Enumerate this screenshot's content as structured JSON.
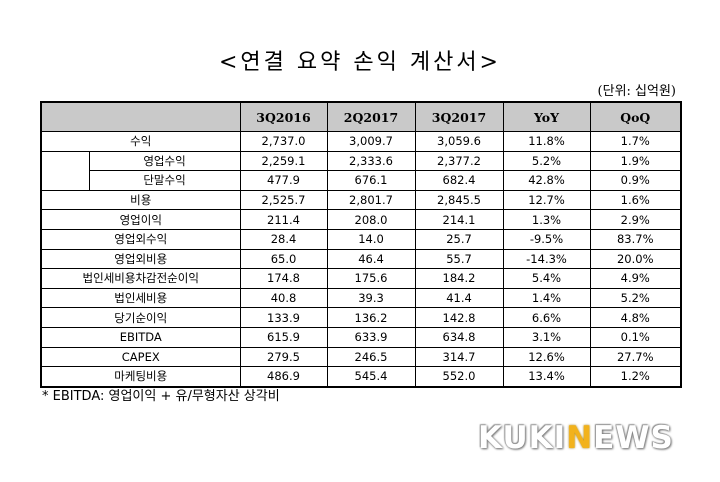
{
  "title": "<연결 요약 손익 계산서>",
  "unit": "(단위: 십억원)",
  "columns": [
    "3Q2016",
    "2Q2017",
    "3Q2017",
    "YoY",
    "QoQ"
  ],
  "rows": [
    {
      "label": "수익",
      "values": [
        "2,737.0",
        "3,009.7",
        "3,059.6",
        "11.8%",
        "1.7%"
      ]
    },
    {
      "label": "영업수익",
      "values": [
        "2,259.1",
        "2,333.6",
        "2,377.2",
        "5.2%",
        "1.9%"
      ]
    },
    {
      "label": "단말수익",
      "values": [
        "477.9",
        "676.1",
        "682.4",
        "42.8%",
        "0.9%"
      ]
    },
    {
      "label": "비용",
      "values": [
        "2,525.7",
        "2,801.7",
        "2,845.5",
        "12.7%",
        "1.6%"
      ]
    },
    {
      "label": "영업이익",
      "values": [
        "211.4",
        "208.0",
        "214.1",
        "1.3%",
        "2.9%"
      ]
    },
    {
      "label": "영업외수익",
      "values": [
        "28.4",
        "14.0",
        "25.7",
        "-9.5%",
        "83.7%"
      ]
    },
    {
      "label": "영업외비용",
      "values": [
        "65.0",
        "46.4",
        "55.7",
        "-14.3%",
        "20.0%"
      ]
    },
    {
      "label": "법인세비용차감전순이익",
      "values": [
        "174.8",
        "175.6",
        "184.2",
        "5.4%",
        "4.9%"
      ]
    },
    {
      "label": "법인세비용",
      "values": [
        "40.8",
        "39.3",
        "41.4",
        "1.4%",
        "5.2%"
      ]
    },
    {
      "label": "당기순이익",
      "values": [
        "133.9",
        "136.2",
        "142.8",
        "6.6%",
        "4.8%"
      ]
    },
    {
      "label": "EBITDA",
      "values": [
        "615.9",
        "633.9",
        "634.8",
        "3.1%",
        "0.1%"
      ]
    },
    {
      "label": "CAPEX",
      "values": [
        "279.5",
        "246.5",
        "314.7",
        "12.6%",
        "27.7%"
      ]
    },
    {
      "label": "마케팅비용",
      "values": [
        "486.9",
        "545.4",
        "552.0",
        "13.4%",
        "1.2%"
      ]
    }
  ],
  "footnote": "* EBITDA: 영업이익 + 유/무형자산 상각비",
  "logo": {
    "part1": "KUKI",
    "part2": "N",
    "part3": "EWS"
  }
}
